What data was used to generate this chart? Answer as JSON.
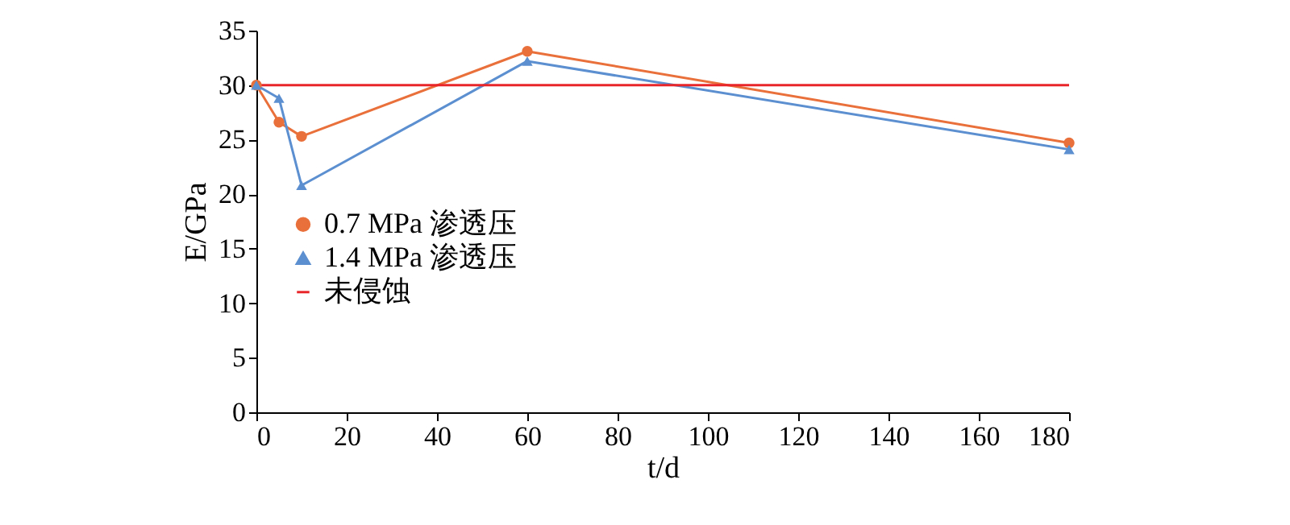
{
  "chart_data": {
    "type": "line",
    "xlabel": "t/d",
    "ylabel": "E/GPa",
    "xlim": [
      0,
      180
    ],
    "ylim": [
      0,
      35
    ],
    "xticks": [
      0,
      20,
      40,
      60,
      80,
      100,
      120,
      140,
      160,
      180
    ],
    "yticks": [
      0,
      5,
      10,
      15,
      20,
      25,
      30,
      35
    ],
    "grid": false,
    "legend": "left",
    "line_style": "solid",
    "series": [
      {
        "name": "0.7 MPa 渗透压",
        "color": "#e9703a",
        "marker": "circle",
        "x": [
          0,
          5,
          10,
          60,
          180
        ],
        "values": [
          30,
          26.6,
          25.3,
          33.1,
          24.7
        ]
      },
      {
        "name": "1.4 MPa 渗透压",
        "color": "#5b8fd0",
        "marker": "triangle",
        "x": [
          0,
          5,
          10,
          60,
          180
        ],
        "values": [
          30,
          28.8,
          20.8,
          32.2,
          24.1
        ]
      },
      {
        "name": "未侵蚀",
        "color": "#e8262a",
        "marker": "none",
        "x": [
          0,
          180
        ],
        "values": [
          30,
          30
        ]
      }
    ]
  }
}
